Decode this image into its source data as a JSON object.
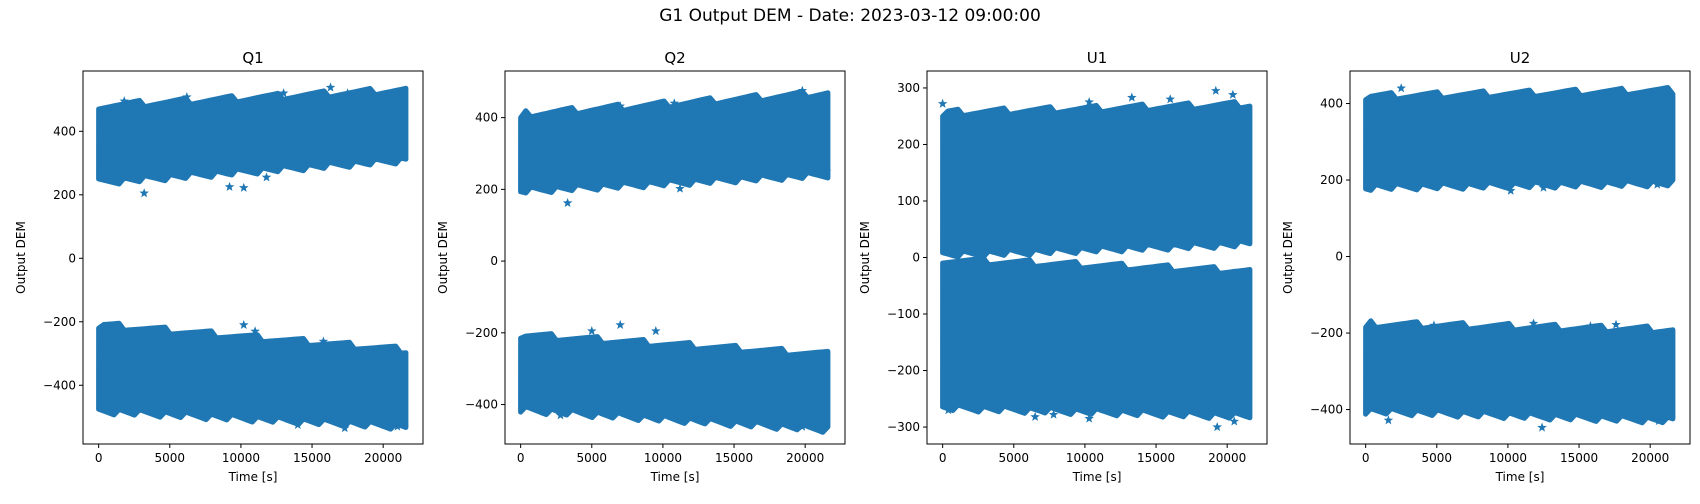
{
  "suptitle": "G1 Output DEM - Date: 2023-03-12 09:00:00",
  "marker_color": "#1f77b4",
  "marker": "star",
  "chart_data": [
    {
      "type": "scatter",
      "title": "Q1",
      "xlabel": "Time [s]",
      "ylabel": "Output DEM",
      "xlim": [
        -1100,
        22800
      ],
      "ylim": [
        -585,
        590
      ],
      "xticks": [
        0,
        5000,
        10000,
        15000,
        20000
      ],
      "yticks": [
        -400,
        -200,
        0,
        200,
        400
      ],
      "x_range": [
        0,
        21600
      ],
      "series": [],
      "bands": [
        {
          "upper_start": 470,
          "upper_end": 520,
          "lower_start": 250,
          "lower_end": 320
        },
        {
          "upper_start": -220,
          "upper_end": -300,
          "lower_start": -470,
          "lower_end": -520
        }
      ],
      "outliers": [
        [
          1800,
          495
        ],
        [
          3200,
          205
        ],
        [
          6200,
          508
        ],
        [
          9200,
          225
        ],
        [
          10200,
          222
        ],
        [
          11800,
          255
        ],
        [
          13000,
          520
        ],
        [
          16300,
          538
        ],
        [
          17500,
          520
        ],
        [
          10200,
          -210
        ],
        [
          11000,
          -230
        ],
        [
          14000,
          -525
        ],
        [
          17300,
          -535
        ],
        [
          15800,
          -262
        ],
        [
          21000,
          -530
        ]
      ]
    },
    {
      "type": "scatter",
      "title": "Q2",
      "xlabel": "Time [s]",
      "ylabel": "Output DEM",
      "xlim": [
        -1100,
        22800
      ],
      "ylim": [
        -510,
        530
      ],
      "xticks": [
        0,
        5000,
        10000,
        15000,
        20000
      ],
      "yticks": [
        -400,
        -200,
        0,
        200,
        400
      ],
      "x_range": [
        0,
        21600
      ],
      "series": [],
      "bands": [
        {
          "upper_start": 400,
          "upper_end": 460,
          "lower_start": 205,
          "lower_end": 250
        },
        {
          "upper_start": -215,
          "upper_end": -270,
          "lower_start": -405,
          "lower_end": -460
        }
      ],
      "outliers": [
        [
          3300,
          162
        ],
        [
          11200,
          202
        ],
        [
          13500,
          238
        ],
        [
          7000,
          432
        ],
        [
          10800,
          440
        ],
        [
          19800,
          475
        ],
        [
          21500,
          250
        ],
        [
          7000,
          -178
        ],
        [
          9500,
          -195
        ],
        [
          5000,
          -195
        ],
        [
          2800,
          -430
        ],
        [
          12600,
          -440
        ],
        [
          19800,
          -462
        ]
      ]
    },
    {
      "type": "scatter",
      "title": "U1",
      "xlabel": "Time [s]",
      "ylabel": "Output DEM",
      "xlim": [
        -1100,
        22800
      ],
      "ylim": [
        -330,
        330
      ],
      "xticks": [
        0,
        5000,
        10000,
        15000,
        20000
      ],
      "yticks": [
        -300,
        -200,
        -100,
        0,
        100,
        200,
        300
      ],
      "x_range": [
        0,
        21600
      ],
      "series": [],
      "bands": [
        {
          "upper_start": 250,
          "upper_end": 265,
          "lower_start": 10,
          "lower_end": 30
        },
        {
          "upper_start": -10,
          "upper_end": -30,
          "lower_start": -260,
          "lower_end": -275
        }
      ],
      "outliers": [
        [
          0,
          272
        ],
        [
          13300,
          283
        ],
        [
          16000,
          280
        ],
        [
          19200,
          295
        ],
        [
          20400,
          288
        ],
        [
          10300,
          275
        ],
        [
          6500,
          -282
        ],
        [
          10300,
          -285
        ],
        [
          19300,
          -300
        ],
        [
          20500,
          -290
        ],
        [
          400,
          -270
        ],
        [
          7800,
          -278
        ]
      ]
    },
    {
      "type": "scatter",
      "title": "U2",
      "xlabel": "Time [s]",
      "ylabel": "Output DEM",
      "xlim": [
        -1100,
        22800
      ],
      "ylim": [
        -490,
        485
      ],
      "xticks": [
        0,
        5000,
        10000,
        15000,
        20000
      ],
      "yticks": [
        -400,
        -200,
        0,
        200,
        400
      ],
      "x_range": [
        0,
        21600
      ],
      "series": [],
      "bands": [
        {
          "upper_start": 410,
          "upper_end": 425,
          "lower_start": 190,
          "lower_end": 200
        },
        {
          "upper_start": -185,
          "upper_end": -200,
          "lower_start": -395,
          "lower_end": -420
        }
      ],
      "outliers": [
        [
          2500,
          440
        ],
        [
          10200,
          172
        ],
        [
          12500,
          180
        ],
        [
          20500,
          188
        ],
        [
          11800,
          -175
        ],
        [
          15800,
          -182
        ],
        [
          12400,
          -447
        ],
        [
          1600,
          -428
        ],
        [
          4800,
          -180
        ],
        [
          17600,
          -178
        ],
        [
          20600,
          -430
        ]
      ]
    }
  ]
}
